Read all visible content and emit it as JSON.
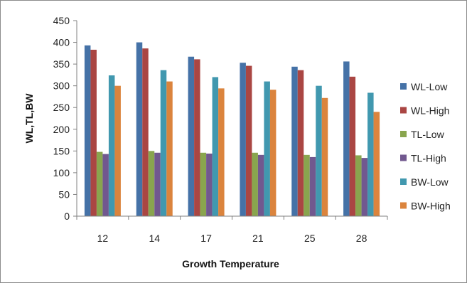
{
  "chart_data": {
    "type": "bar",
    "title": "",
    "xlabel": "Growth Temperature",
    "ylabel": "WL,TL,BW",
    "ylim": [
      0,
      450
    ],
    "yticks": [
      0,
      50,
      100,
      150,
      200,
      250,
      300,
      350,
      400,
      450
    ],
    "grid": false,
    "legend": "right",
    "categories": [
      "12",
      "14",
      "17",
      "21",
      "25",
      "28"
    ],
    "series": [
      {
        "name": "WL-Low",
        "color": "#4572A7",
        "values": [
          393,
          400,
          367,
          353,
          344,
          356
        ]
      },
      {
        "name": "WL-High",
        "color": "#AA4643",
        "values": [
          383,
          386,
          361,
          346,
          336,
          321
        ]
      },
      {
        "name": "TL-Low",
        "color": "#89A54E",
        "values": [
          148,
          150,
          146,
          146,
          141,
          140
        ]
      },
      {
        "name": "TL-High",
        "color": "#71588F",
        "values": [
          143,
          146,
          144,
          141,
          136,
          134
        ]
      },
      {
        "name": "BW-Low",
        "color": "#4198AF",
        "values": [
          324,
          336,
          320,
          310,
          300,
          284
        ]
      },
      {
        "name": "BW-High",
        "color": "#DB843D",
        "values": [
          300,
          310,
          294,
          291,
          272,
          240
        ]
      }
    ]
  }
}
